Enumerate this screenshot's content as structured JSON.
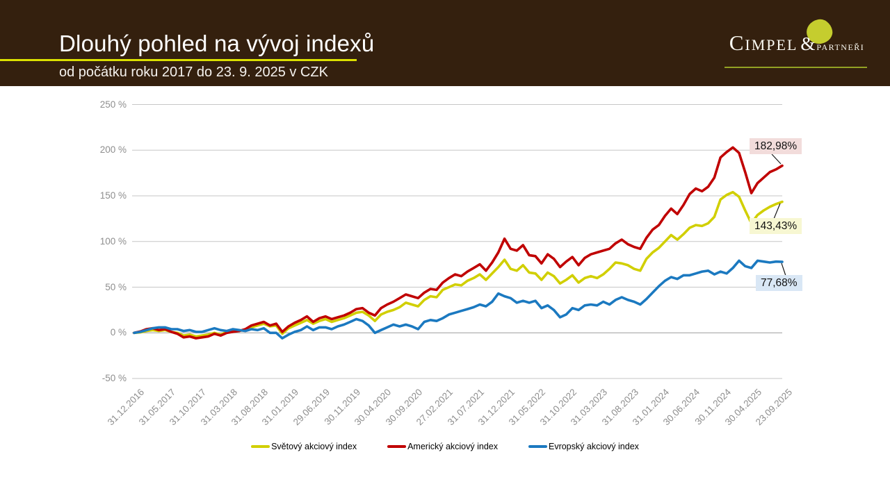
{
  "header": {
    "title": "Dlouhý pohled na vývoj indexů",
    "subtitle": "od počátku roku 2017 do 23. 9. 2025 v CZK",
    "logo": {
      "main": "Cimpel",
      "amp": "&",
      "sub": "partneři"
    }
  },
  "colors": {
    "header_bg": "#34200e",
    "title_underline": "#dce000",
    "logo_accent": "#c5cd2e",
    "world_line": "#d1cf00",
    "american_line": "#c00000",
    "european_line": "#1b79c0"
  },
  "chart_data": {
    "type": "line",
    "ylim": [
      -50,
      250
    ],
    "grid": "horizontal-only",
    "legend_position": "bottom-center",
    "yticks": [
      {
        "v": 250,
        "label": "250 %"
      },
      {
        "v": 200,
        "label": "200 %"
      },
      {
        "v": 150,
        "label": "150 %"
      },
      {
        "v": 100,
        "label": "100 %"
      },
      {
        "v": 50,
        "label": "50 %"
      },
      {
        "v": 0,
        "label": "0 %"
      },
      {
        "v": -50,
        "label": "-50 %"
      }
    ],
    "months_per_x_label": 5,
    "x_labels": [
      "31.12.2016",
      "31.05.2017",
      "31.10.2017",
      "31.03.2018",
      "31.08.2018",
      "31.01.2019",
      "29.06.2019",
      "30.11.2019",
      "30.04.2020",
      "30.09.2020",
      "27.02.2021",
      "31.07.2021",
      "31.12.2021",
      "31.05.2022",
      "31.10.2022",
      "31.03.2023",
      "31.08.2023",
      "31.01.2024",
      "30.06.2024",
      "30.11.2024",
      "30.04.2025",
      "23.09.2025"
    ],
    "series": [
      {
        "key": "world",
        "name": "Světový akciový index",
        "color": "#d1cf00",
        "end_label": "143,43%",
        "end_label_bg": "#f7f7d2",
        "values": [
          0,
          0.5,
          2,
          3,
          2,
          3,
          1,
          0,
          -3,
          -2,
          -4,
          -3,
          -2,
          0,
          -2,
          1,
          1.5,
          2,
          3.5,
          6,
          8,
          10,
          7,
          8,
          -1,
          5,
          8,
          11,
          14,
          10,
          13,
          15,
          12,
          14,
          16,
          19,
          22,
          23,
          19,
          13,
          20,
          23,
          25,
          28,
          33,
          31,
          29,
          36,
          40,
          39,
          47,
          50,
          53,
          52,
          57,
          60,
          64,
          58,
          65,
          72,
          80,
          70,
          68,
          74,
          66,
          65,
          58,
          66,
          62,
          54,
          58,
          63,
          55,
          60,
          62,
          60,
          64,
          70,
          77,
          76,
          74,
          70,
          68,
          81,
          88,
          93,
          100,
          107,
          102,
          108,
          115,
          118,
          117,
          120,
          127,
          146,
          151,
          154,
          149,
          134,
          120,
          129,
          134,
          138,
          141,
          143.43
        ]
      },
      {
        "key": "american",
        "name": "Americký akciový index",
        "color": "#c00000",
        "end_label": "182,98%",
        "end_label_bg": "#f2dcdb",
        "values": [
          0,
          1.5,
          4,
          5,
          3,
          4,
          1,
          -1,
          -5,
          -4,
          -6,
          -5,
          -4,
          -1,
          -3,
          0,
          1,
          2,
          4,
          8,
          10,
          12,
          8,
          10,
          1,
          7,
          11,
          14,
          18,
          12,
          16,
          18,
          15,
          17,
          19,
          22,
          26,
          27,
          22,
          19,
          27,
          31,
          34,
          38,
          42,
          40,
          38,
          44,
          48,
          47,
          55,
          60,
          64,
          62,
          67,
          71,
          75,
          68,
          77,
          88,
          103,
          92,
          90,
          96,
          85,
          84,
          76,
          86,
          81,
          72,
          78,
          83,
          74,
          82,
          86,
          88,
          90,
          92,
          98,
          102,
          97,
          94,
          92,
          104,
          113,
          118,
          128,
          136,
          130,
          140,
          152,
          158,
          155,
          160,
          170,
          192,
          198,
          203,
          197,
          176,
          153,
          164,
          170,
          176,
          179,
          182.98
        ]
      },
      {
        "key": "european",
        "name": "Evropský akciový index",
        "color": "#1b79c0",
        "end_label": "77,68%",
        "end_label_bg": "#d9e7f5",
        "values": [
          0,
          1,
          3,
          5,
          6,
          6,
          4,
          4,
          2,
          3,
          1,
          1,
          3,
          5,
          3,
          2,
          4,
          3,
          2,
          4,
          3,
          5,
          0,
          0,
          -6,
          -2,
          1,
          3,
          7,
          3,
          6,
          6,
          4,
          7,
          9,
          12,
          15,
          13,
          8,
          0,
          3,
          6,
          9,
          7,
          9,
          7,
          4,
          12,
          14,
          13,
          16,
          20,
          22,
          24,
          26,
          28,
          31,
          29,
          34,
          43,
          40,
          38,
          33,
          35,
          33,
          35,
          27,
          30,
          25,
          17,
          20,
          27,
          25,
          30,
          31,
          30,
          34,
          31,
          36,
          39,
          36,
          34,
          31,
          37,
          44,
          51,
          57,
          61,
          59,
          63,
          63,
          65,
          67,
          68,
          64,
          67,
          65,
          71,
          79,
          73,
          71,
          79,
          78,
          77,
          78,
          77.68
        ]
      }
    ]
  }
}
